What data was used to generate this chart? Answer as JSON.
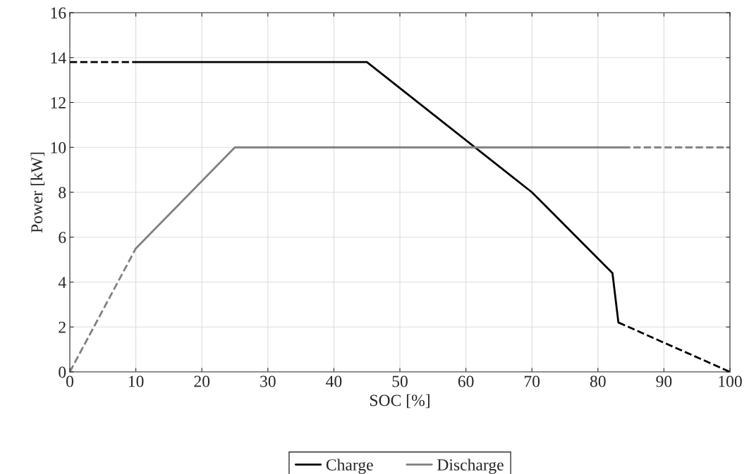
{
  "chart_data": {
    "type": "line",
    "xlabel": "SOC [%]",
    "ylabel": "Power [kW]",
    "xlim": [
      0,
      100
    ],
    "xticks": [
      0,
      10,
      20,
      30,
      40,
      50,
      60,
      70,
      80,
      90,
      100
    ],
    "ylim": [
      0,
      16
    ],
    "yticks": [
      0,
      2,
      4,
      6,
      8,
      10,
      12,
      14,
      16
    ],
    "grid": true,
    "legend": "bottom",
    "series": [
      {
        "name": "Charge",
        "color": "#000000",
        "line_style": "solid",
        "x": [
          10,
          45,
          70,
          82.2,
          83.1
        ],
        "values": [
          13.8,
          13.8,
          8,
          4.4,
          2.2
        ]
      },
      {
        "name": "Discharge",
        "color": "#808080",
        "line_style": "solid",
        "x": [
          10,
          25,
          83.8
        ],
        "values": [
          5.5,
          10,
          10
        ]
      },
      {
        "color": "#000000",
        "line_style": "dashed",
        "x": [
          0,
          10
        ],
        "values": [
          13.8,
          13.8
        ]
      },
      {
        "color": "#000000",
        "line_style": "dashed",
        "x": [
          83.1,
          100
        ],
        "values": [
          2.2,
          0
        ]
      },
      {
        "color": "#808080",
        "line_style": "dashed",
        "x": [
          0,
          10
        ],
        "values": [
          0,
          5.5
        ]
      },
      {
        "color": "#808080",
        "line_style": "dashed",
        "x": [
          83.8,
          100
        ],
        "values": [
          10,
          10
        ]
      }
    ]
  }
}
